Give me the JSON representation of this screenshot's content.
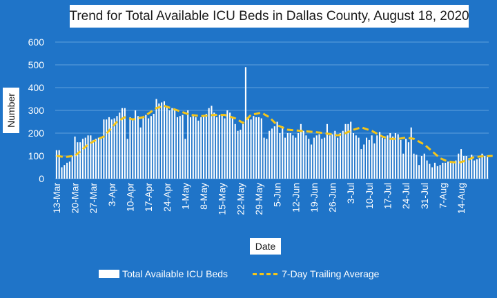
{
  "chart_data": {
    "type": "bar",
    "title": "Trend for Total Available ICU Beds in Dallas County, August 18, 2020",
    "xlabel": "Date",
    "ylabel": "Number",
    "ylim": [
      0,
      600
    ],
    "yticks": [
      "0",
      "100",
      "200",
      "300",
      "400",
      "500",
      "600"
    ],
    "xticks": [
      "13-Mar",
      "20-Mar",
      "27-Mar",
      "3-Apr",
      "10-Apr",
      "17-Apr",
      "24-Apr",
      "1-May",
      "8-May",
      "15-May",
      "22-May",
      "29-May",
      "5-Jun",
      "12-Jun",
      "19-Jun",
      "26-Jun",
      "3-Jul",
      "10-Jul",
      "17-Jul",
      "24-Jul",
      "31-Jul",
      "7-Aug",
      "14-Aug"
    ],
    "grid": true,
    "legend_position": "bottom",
    "colors": {
      "background": "#1F74C8",
      "bars": "#FFFFFF",
      "average_line": "#F5C518",
      "grid": "#5FA0DD"
    },
    "series": [
      {
        "name": "Total Available ICU Beds",
        "type": "bar",
        "values": [
          125,
          125,
          50,
          60,
          70,
          75,
          100,
          185,
          160,
          160,
          175,
          180,
          190,
          190,
          170,
          175,
          180,
          175,
          260,
          260,
          270,
          260,
          265,
          275,
          290,
          310,
          310,
          175,
          270,
          265,
          300,
          275,
          225,
          270,
          280,
          265,
          275,
          285,
          350,
          330,
          335,
          340,
          320,
          300,
          310,
          300,
          270,
          275,
          280,
          175,
          300,
          270,
          280,
          270,
          255,
          270,
          275,
          285,
          310,
          320,
          290,
          270,
          280,
          280,
          265,
          300,
          290,
          270,
          240,
          210,
          215,
          240,
          490,
          270,
          260,
          275,
          270,
          270,
          265,
          180,
          175,
          210,
          220,
          230,
          250,
          200,
          230,
          180,
          200,
          200,
          190,
          180,
          200,
          240,
          210,
          190,
          175,
          150,
          180,
          190,
          195,
          175,
          180,
          240,
          190,
          195,
          210,
          180,
          200,
          210,
          240,
          240,
          250,
          200,
          190,
          180,
          130,
          150,
          180,
          170,
          190,
          155,
          190,
          205,
          180,
          175,
          190,
          200,
          185,
          200,
          195,
          170,
          110,
          175,
          160,
          225,
          110,
          105,
          60,
          100,
          110,
          80,
          65,
          50,
          70,
          55,
          60,
          70,
          70,
          75,
          75,
          75,
          80,
          110,
          130,
          100,
          100,
          90,
          105,
          80,
          85,
          90,
          110,
          100,
          95
        ]
      },
      {
        "name": "7-Day Trailing Average",
        "type": "line",
        "style": "dashed",
        "points": [
          [
            0,
            100
          ],
          [
            3,
            95
          ],
          [
            7,
            100
          ],
          [
            12,
            150
          ],
          [
            15,
            170
          ],
          [
            18,
            185
          ],
          [
            23,
            250
          ],
          [
            26,
            270
          ],
          [
            29,
            260
          ],
          [
            33,
            270
          ],
          [
            38,
            310
          ],
          [
            41,
            320
          ],
          [
            46,
            300
          ],
          [
            51,
            280
          ],
          [
            55,
            275
          ],
          [
            60,
            280
          ],
          [
            64,
            280
          ],
          [
            68,
            265
          ],
          [
            71,
            245
          ],
          [
            74,
            280
          ],
          [
            78,
            290
          ],
          [
            81,
            270
          ],
          [
            84,
            235
          ],
          [
            88,
            215
          ],
          [
            93,
            210
          ],
          [
            98,
            205
          ],
          [
            102,
            200
          ],
          [
            107,
            190
          ],
          [
            110,
            200
          ],
          [
            113,
            215
          ],
          [
            116,
            225
          ],
          [
            120,
            210
          ],
          [
            124,
            185
          ],
          [
            127,
            175
          ],
          [
            130,
            175
          ],
          [
            133,
            180
          ],
          [
            136,
            175
          ],
          [
            140,
            150
          ],
          [
            143,
            120
          ],
          [
            146,
            90
          ],
          [
            149,
            75
          ],
          [
            153,
            70
          ],
          [
            156,
            80
          ],
          [
            159,
            95
          ],
          [
            162,
            98
          ],
          [
            166,
            100
          ]
        ]
      }
    ]
  }
}
